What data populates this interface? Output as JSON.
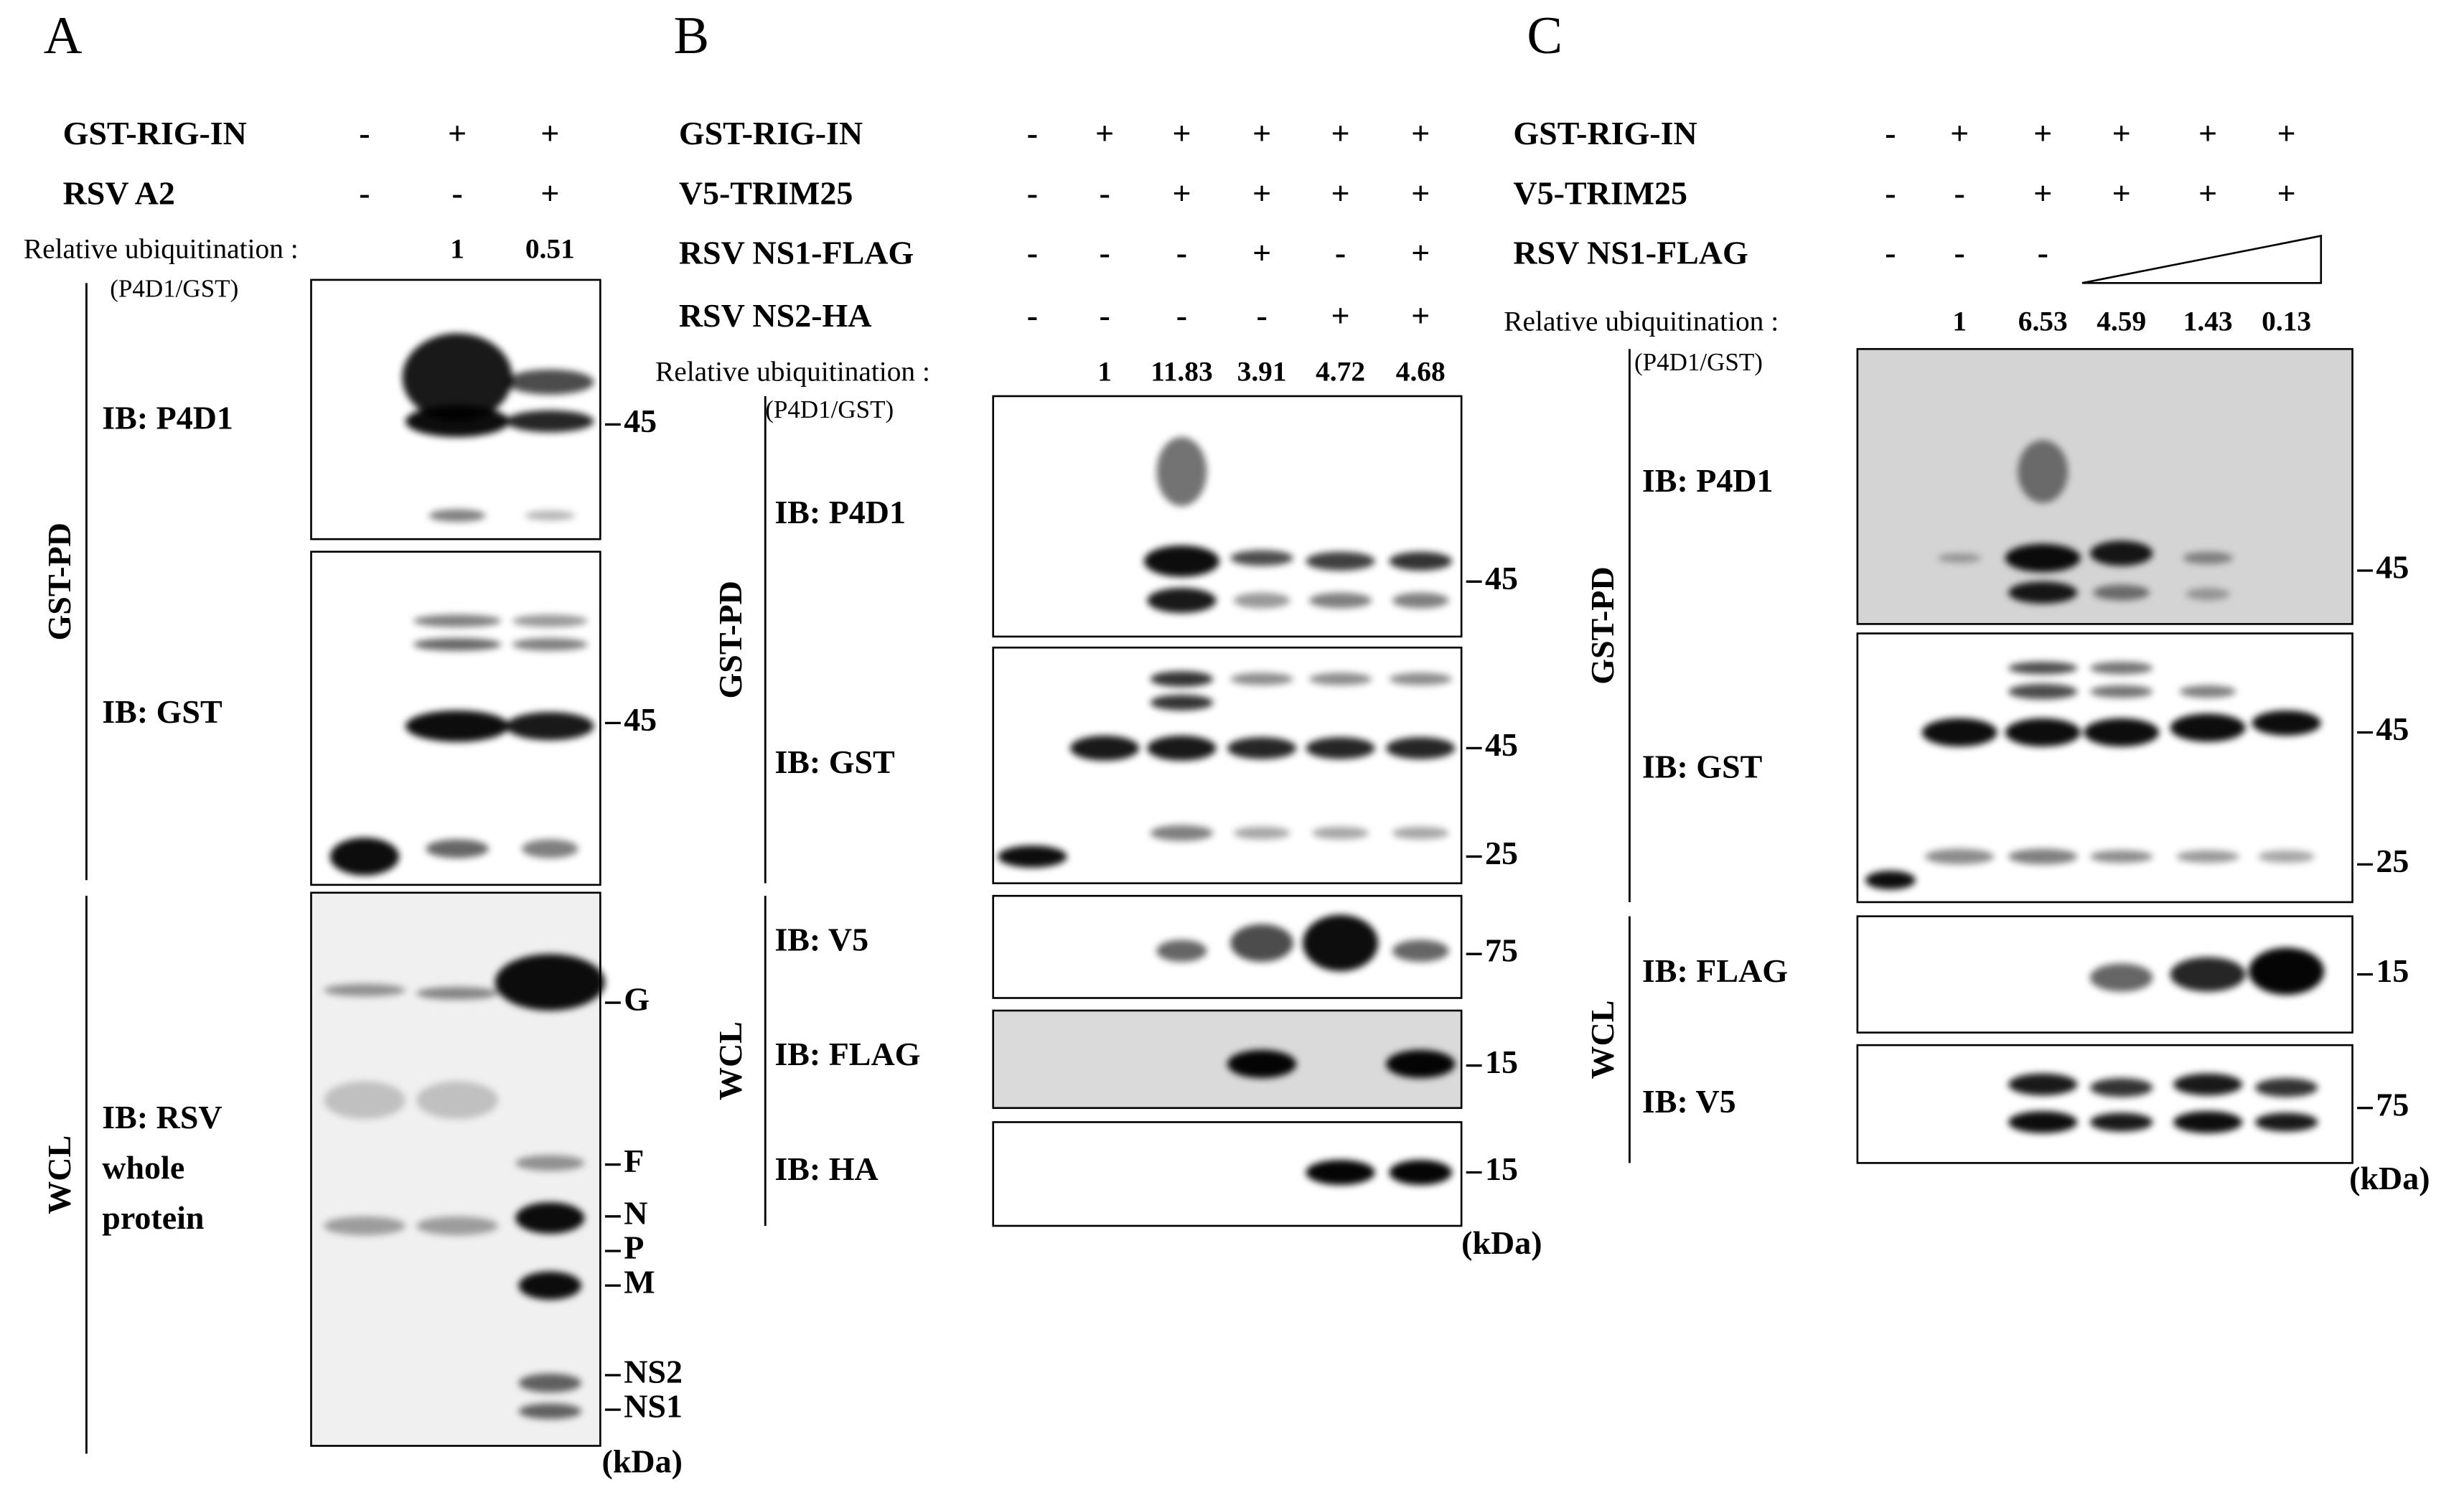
{
  "panels": [
    {
      "letter": "A",
      "conditions": [
        {
          "label": "GST-RIG-IN",
          "marks": [
            "-",
            "+",
            "+"
          ]
        },
        {
          "label": "RSV A2",
          "marks": [
            "-",
            "-",
            "+"
          ]
        }
      ],
      "quant_label": "Relative ubiquitination :",
      "quant_sub": "(P4D1/GST)",
      "quant_values": [
        "1",
        "0.51"
      ],
      "groups": [
        {
          "label": "GST-PD"
        },
        {
          "label": "WCL"
        }
      ],
      "blots": [
        {
          "label": "IB: P4D1",
          "markers": [
            "45"
          ]
        },
        {
          "label": "IB: GST",
          "markers": [
            "45"
          ]
        },
        {
          "label": [
            "IB: RSV",
            "whole",
            "protein"
          ],
          "markers": [
            "G",
            "F",
            "N",
            "P",
            "M",
            "NS2",
            "NS1"
          ]
        }
      ],
      "unit": "(kDa)"
    },
    {
      "letter": "B",
      "conditions": [
        {
          "label": "GST-RIG-IN",
          "marks": [
            "-",
            "+",
            "+",
            "+",
            "+",
            "+"
          ]
        },
        {
          "label": "V5-TRIM25",
          "marks": [
            "-",
            "-",
            "+",
            "+",
            "+",
            "+"
          ]
        },
        {
          "label": "RSV NS1-FLAG",
          "marks": [
            "-",
            "-",
            "-",
            "+",
            "-",
            "+"
          ]
        },
        {
          "label": "RSV NS2-HA",
          "marks": [
            "-",
            "-",
            "-",
            "-",
            "+",
            "+"
          ]
        }
      ],
      "quant_label": "Relative ubiquitination :",
      "quant_sub": "(P4D1/GST)",
      "quant_values": [
        "1",
        "11.83",
        "3.91",
        "4.72",
        "4.68"
      ],
      "groups": [
        {
          "label": "GST-PD"
        },
        {
          "label": "WCL"
        }
      ],
      "blots": [
        {
          "label": "IB: P4D1",
          "markers": [
            "45"
          ]
        },
        {
          "label": "IB: GST",
          "markers": [
            "45",
            "25"
          ]
        },
        {
          "label": "IB: V5",
          "markers": [
            "75"
          ]
        },
        {
          "label": "IB: FLAG",
          "markers": [
            "15"
          ]
        },
        {
          "label": "IB: HA",
          "markers": [
            "15"
          ]
        }
      ],
      "unit": "(kDa)"
    },
    {
      "letter": "C",
      "conditions": [
        {
          "label": "GST-RIG-IN",
          "marks": [
            "-",
            "+",
            "+",
            "+",
            "+",
            "+"
          ]
        },
        {
          "label": "V5-TRIM25",
          "marks": [
            "-",
            "-",
            "+",
            "+",
            "+",
            "+"
          ]
        },
        {
          "label": "RSV NS1-FLAG",
          "marks": [
            "-",
            "-",
            "-"
          ]
        }
      ],
      "quant_label": "Relative ubiquitination :",
      "quant_sub": "(P4D1/GST)",
      "quant_values": [
        "1",
        "6.53",
        "4.59",
        "1.43",
        "0.13"
      ],
      "groups": [
        {
          "label": "GST-PD"
        },
        {
          "label": "WCL"
        }
      ],
      "blots": [
        {
          "label": "IB: P4D1",
          "markers": [
            "45"
          ]
        },
        {
          "label": "IB: GST",
          "markers": [
            "45",
            "25"
          ]
        },
        {
          "label": "IB: FLAG",
          "markers": [
            "15"
          ]
        },
        {
          "label": "IB: V5",
          "markers": [
            "75"
          ]
        }
      ],
      "unit": "(kDa)"
    }
  ]
}
